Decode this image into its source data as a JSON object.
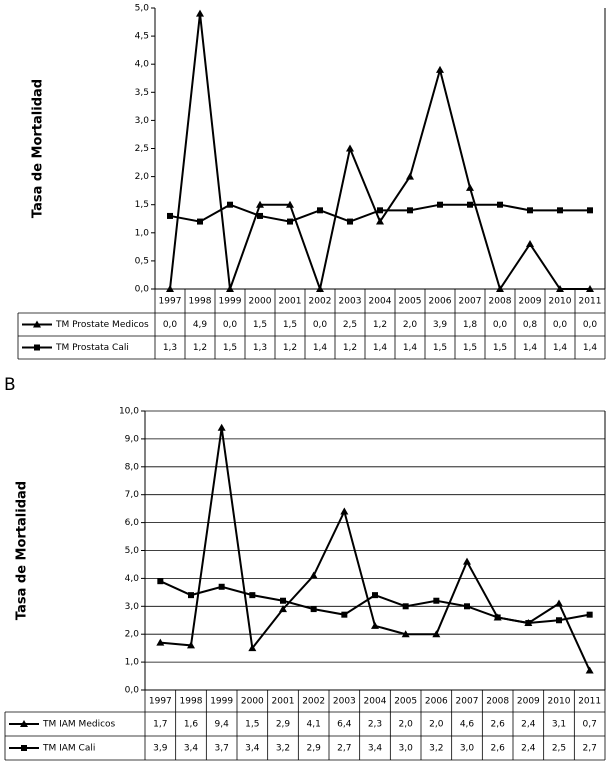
{
  "chart_data": [
    {
      "type": "line",
      "ylabel": "Tasa de Mortalidad",
      "categories": [
        "1997",
        "1998",
        "1999",
        "2000",
        "2001",
        "2002",
        "2003",
        "2004",
        "2005",
        "2006",
        "2007",
        "2008",
        "2009",
        "2010",
        "2011"
      ],
      "series": [
        {
          "name": "TM Prostate Medicos",
          "color": "#000000",
          "marker": "triangle",
          "values": [
            0.0,
            4.9,
            0.0,
            1.5,
            1.5,
            0.0,
            2.5,
            1.2,
            2.0,
            3.9,
            1.8,
            0.0,
            0.8,
            0.0,
            0.0
          ],
          "value_labels": [
            "0,0",
            "4,9",
            "0,0",
            "1,5",
            "1,5",
            "0,0",
            "2,5",
            "1,2",
            "2,0",
            "3,9",
            "1,8",
            "0,0",
            "0,8",
            "0,0",
            "0,0"
          ]
        },
        {
          "name": "TM Prostata Cali",
          "color": "#000000",
          "marker": "square",
          "values": [
            1.3,
            1.2,
            1.5,
            1.3,
            1.2,
            1.4,
            1.2,
            1.4,
            1.4,
            1.5,
            1.5,
            1.5,
            1.4,
            1.4,
            1.4
          ],
          "value_labels": [
            "1,3",
            "1,2",
            "1,5",
            "1,3",
            "1,2",
            "1,4",
            "1,2",
            "1,4",
            "1,4",
            "1,5",
            "1,5",
            "1,5",
            "1,4",
            "1,4",
            "1,4"
          ]
        }
      ],
      "ylim": [
        0,
        5
      ],
      "yticks": [
        {
          "value": 0,
          "label": "0,0"
        },
        {
          "value": 0.5,
          "label": "0,5"
        },
        {
          "value": 1,
          "label": "1,0"
        },
        {
          "value": 1.5,
          "label": "1,5"
        },
        {
          "value": 2,
          "label": "2,0"
        },
        {
          "value": 2.5,
          "label": "2,5"
        },
        {
          "value": 3,
          "label": "3,0"
        },
        {
          "value": 3.5,
          "label": "3,5"
        },
        {
          "value": 4,
          "label": "4,0"
        },
        {
          "value": 4.5,
          "label": "4,5"
        },
        {
          "value": 5,
          "label": "5,0"
        }
      ],
      "grid": false
    },
    {
      "type": "line",
      "panel_label": "B",
      "ylabel": "Tasa de Mortalidad",
      "categories": [
        "1997",
        "1998",
        "1999",
        "2000",
        "2001",
        "2002",
        "2003",
        "2004",
        "2005",
        "2006",
        "2007",
        "2008",
        "2009",
        "2010",
        "2011"
      ],
      "series": [
        {
          "name": "TM IAM Medicos",
          "color": "#000000",
          "marker": "triangle",
          "values": [
            1.7,
            1.6,
            9.4,
            1.5,
            2.9,
            4.1,
            6.4,
            2.3,
            2.0,
            2.0,
            4.6,
            2.6,
            2.4,
            3.1,
            0.7
          ],
          "value_labels": [
            "1,7",
            "1,6",
            "9,4",
            "1,5",
            "2,9",
            "4,1",
            "6,4",
            "2,3",
            "2,0",
            "2,0",
            "4,6",
            "2,6",
            "2,4",
            "3,1",
            "0,7"
          ]
        },
        {
          "name": "TM IAM Cali",
          "color": "#000000",
          "marker": "square",
          "values": [
            3.9,
            3.4,
            3.7,
            3.4,
            3.2,
            2.9,
            2.7,
            3.4,
            3.0,
            3.2,
            3.0,
            2.6,
            2.4,
            2.5,
            2.7
          ],
          "value_labels": [
            "3,9",
            "3,4",
            "3,7",
            "3,4",
            "3,2",
            "2,9",
            "2,7",
            "3,4",
            "3,0",
            "3,2",
            "3,0",
            "2,6",
            "2,4",
            "2,5",
            "2,7"
          ]
        }
      ],
      "ylim": [
        0,
        10
      ],
      "yticks": [
        {
          "value": 0,
          "label": "0,0"
        },
        {
          "value": 1,
          "label": "1,0"
        },
        {
          "value": 2,
          "label": "2,0"
        },
        {
          "value": 3,
          "label": "3,0"
        },
        {
          "value": 4,
          "label": "4,0"
        },
        {
          "value": 5,
          "label": "5,0"
        },
        {
          "value": 6,
          "label": "6,0"
        },
        {
          "value": 7,
          "label": "7,0"
        },
        {
          "value": 8,
          "label": "8,0"
        },
        {
          "value": 9,
          "label": "9,0"
        },
        {
          "value": 10,
          "label": "10,0"
        }
      ],
      "grid": true
    }
  ]
}
